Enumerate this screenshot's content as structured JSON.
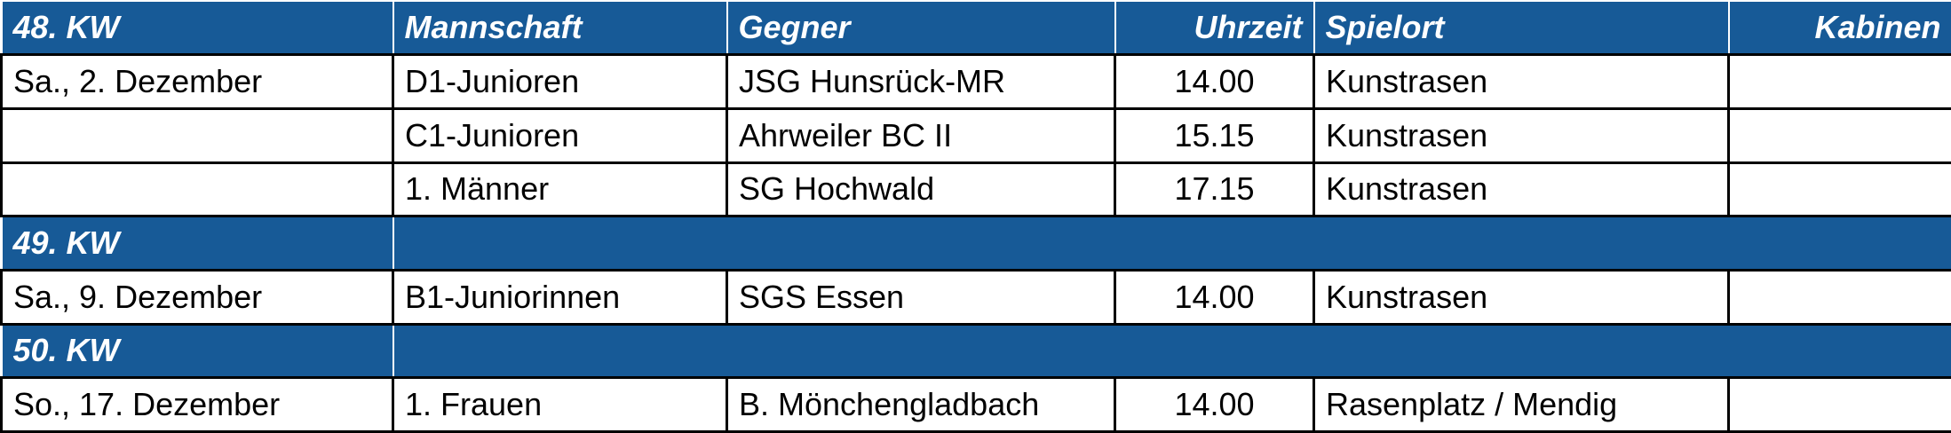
{
  "columns": [
    "Mannschaft",
    "Gegner",
    "Uhrzeit",
    "Spielort",
    "Kabinen"
  ],
  "weeks": [
    {
      "label": "48. KW",
      "games": [
        {
          "date": "Sa., 2. Dezember",
          "team": "D1-Junioren",
          "opponent": "JSG Hunsrück-MR",
          "time": "14.00",
          "venue": "Kunstrasen"
        },
        {
          "team": "C1-Junioren",
          "opponent": "Ahrweiler BC II",
          "time": "15.15",
          "venue": "Kunstrasen"
        },
        {
          "team": "1. Männer",
          "opponent": "SG Hochwald",
          "time": "17.15",
          "venue": "Kunstrasen"
        }
      ]
    },
    {
      "label": "49. KW",
      "games": [
        {
          "date": "Sa., 9. Dezember",
          "team": "B1-Juniorinnen",
          "opponent": "SGS Essen",
          "time": "14.00",
          "venue": "Kunstrasen"
        }
      ]
    },
    {
      "label": "50. KW",
      "games": [
        {
          "date": "So., 17. Dezember",
          "team": "1. Frauen",
          "opponent": "B. Mönchengladbach",
          "time": "14.00",
          "venue": "Rasenplatz / Mendig"
        }
      ]
    }
  ]
}
